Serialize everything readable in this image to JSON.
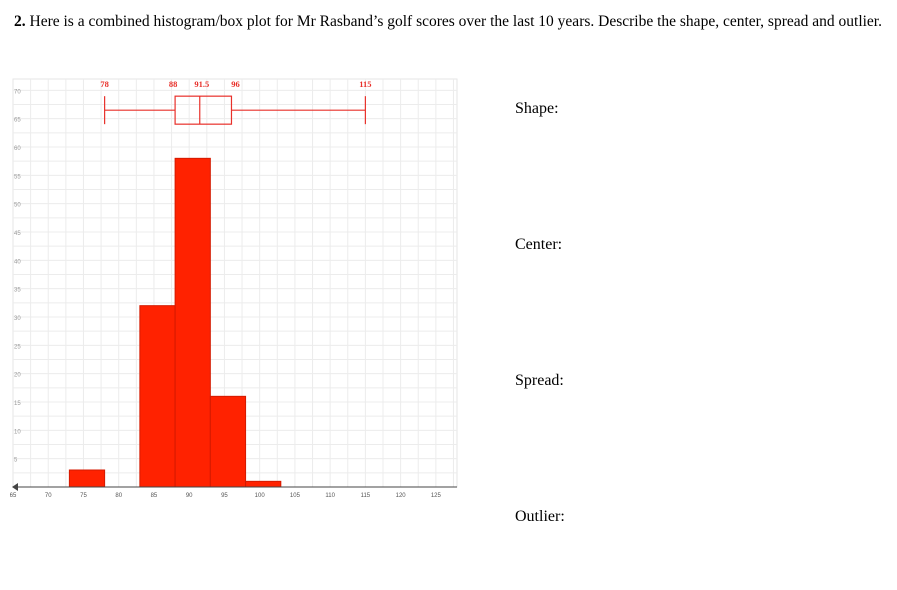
{
  "question": {
    "number": "2.",
    "text": "Here is a combined histogram/box plot for Mr Rasband’s golf scores over the last 10 years.  Describe the shape, center, spread and outlier."
  },
  "labels": {
    "shape": "Shape:",
    "center": "Center:",
    "spread": "Spread:",
    "outlier": "Outlier:"
  },
  "chart_data": {
    "type": "bar",
    "subtype": "histogram-with-boxplot",
    "x_ticks": [
      "65",
      "70",
      "75",
      "80",
      "85",
      "90",
      "95",
      "100",
      "105",
      "110",
      "115",
      "120",
      "125"
    ],
    "y_ticks": [
      "5",
      "10",
      "15",
      "20",
      "25",
      "30",
      "35",
      "40",
      "45",
      "50",
      "55",
      "60",
      "65",
      "70"
    ],
    "xlim": [
      65,
      128
    ],
    "ylim": [
      0,
      72
    ],
    "bins": [
      {
        "start": 73,
        "end": 78,
        "count": 3
      },
      {
        "start": 78,
        "end": 83,
        "count": 0
      },
      {
        "start": 83,
        "end": 88,
        "count": 32
      },
      {
        "start": 88,
        "end": 93,
        "count": 58
      },
      {
        "start": 93,
        "end": 98,
        "count": 16
      },
      {
        "start": 98,
        "end": 103,
        "count": 1
      }
    ],
    "bin_positions": [
      73,
      78,
      83,
      88,
      93,
      98
    ],
    "boxplot": {
      "min": 78,
      "q1": 88,
      "median": 91.5,
      "q3": 96,
      "max": 115,
      "labels": [
        "78",
        "88",
        "91.5",
        "96",
        "115"
      ],
      "y_level": 66.5
    },
    "bar_color": "#ff2200",
    "box_color": "#e8302a",
    "grid": true
  }
}
